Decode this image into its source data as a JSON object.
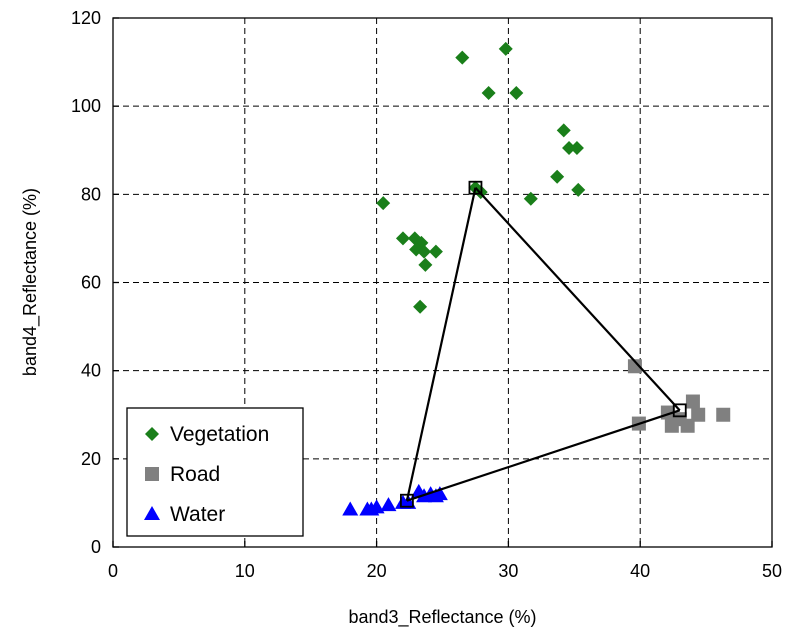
{
  "chart_data": {
    "type": "scatter",
    "title": "",
    "xlabel": "band3_Reflectance (%)",
    "ylabel": "band4_Reflectance (%)",
    "xlim": [
      0,
      50
    ],
    "ylim": [
      0,
      120
    ],
    "xticks": [
      "0",
      "10",
      "20",
      "30",
      "40",
      "50"
    ],
    "yticks": [
      "0",
      "20",
      "40",
      "60",
      "80",
      "100",
      "120"
    ],
    "grid": true,
    "legend_position": "bottom-left",
    "series": [
      {
        "name": "Vegetation",
        "marker": "diamond",
        "color": "#1a7f1a",
        "points": [
          [
            26.5,
            111
          ],
          [
            29.8,
            113
          ],
          [
            28.5,
            103
          ],
          [
            30.6,
            103
          ],
          [
            34.2,
            94.5
          ],
          [
            34.6,
            90.5
          ],
          [
            35.2,
            90.5
          ],
          [
            33.7,
            84
          ],
          [
            35.3,
            81
          ],
          [
            31.7,
            79
          ],
          [
            27.5,
            81.5
          ],
          [
            27.9,
            80.5
          ],
          [
            20.5,
            78
          ],
          [
            22.0,
            70
          ],
          [
            22.9,
            70
          ],
          [
            23.4,
            69
          ],
          [
            23.0,
            67.5
          ],
          [
            23.6,
            67
          ],
          [
            24.5,
            67
          ],
          [
            23.7,
            64
          ],
          [
            23.3,
            54.5
          ]
        ]
      },
      {
        "name": "Road",
        "marker": "square",
        "color": "#808080",
        "points": [
          [
            39.6,
            41
          ],
          [
            39.9,
            28
          ],
          [
            42.1,
            30.5
          ],
          [
            42.4,
            27.5
          ],
          [
            43.0,
            29
          ],
          [
            43.6,
            27.5
          ],
          [
            44.0,
            33
          ],
          [
            44.4,
            30
          ],
          [
            46.3,
            30
          ]
        ]
      },
      {
        "name": "Water",
        "marker": "triangle",
        "color": "#0000ff",
        "points": [
          [
            18.0,
            8.5
          ],
          [
            19.3,
            8.5
          ],
          [
            19.6,
            8.5
          ],
          [
            20.0,
            9
          ],
          [
            20.9,
            9.5
          ],
          [
            22.0,
            10
          ],
          [
            22.4,
            10
          ],
          [
            23.2,
            12.5
          ],
          [
            23.6,
            11.5
          ],
          [
            24.1,
            12
          ],
          [
            24.5,
            11.5
          ],
          [
            24.8,
            12
          ]
        ]
      }
    ],
    "endmember_triangle": {
      "color": "#000000",
      "vertices": [
        [
          27.5,
          81.5
        ],
        [
          43.0,
          31
        ],
        [
          22.3,
          10.5
        ]
      ]
    }
  }
}
